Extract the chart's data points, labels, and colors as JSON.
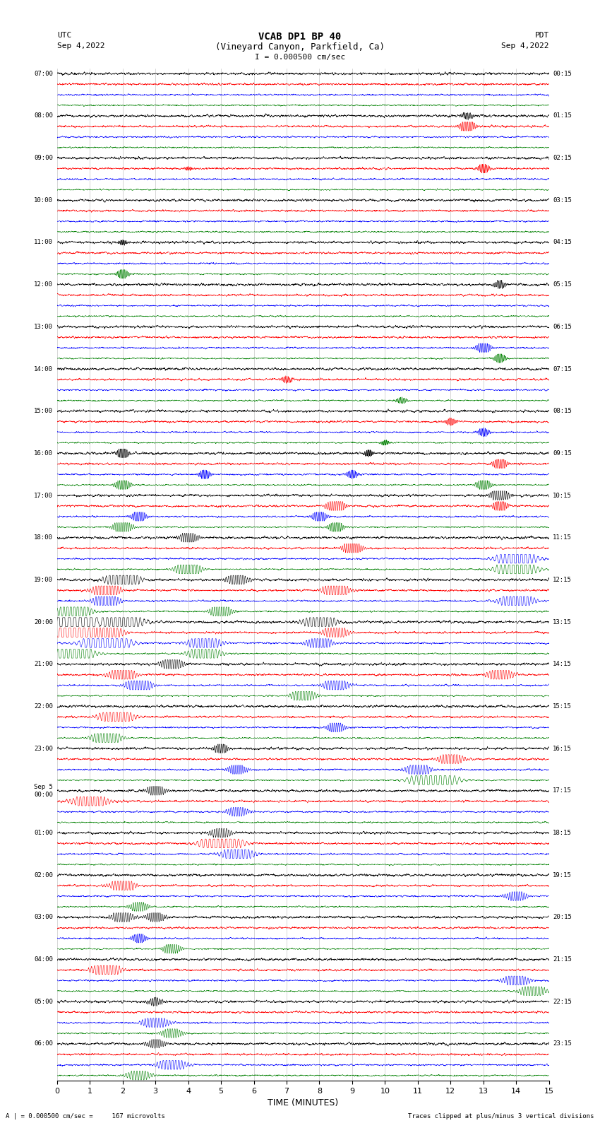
{
  "title_line1": "VCAB DP1 BP 40",
  "title_line2": "(Vineyard Canyon, Parkfield, Ca)",
  "scale_text": "I = 0.000500 cm/sec",
  "bottom_xlabel": "TIME (MINUTES)",
  "bottom_note": "A | = 0.000500 cm/sec =     167 microvolts",
  "bottom_note2": "Traces clipped at plus/minus 3 vertical divisions",
  "utc_times": [
    "07:00",
    "08:00",
    "09:00",
    "10:00",
    "11:00",
    "12:00",
    "13:00",
    "14:00",
    "15:00",
    "16:00",
    "17:00",
    "18:00",
    "19:00",
    "20:00",
    "21:00",
    "22:00",
    "23:00",
    "Sep 5\n00:00",
    "01:00",
    "02:00",
    "03:00",
    "04:00",
    "05:00",
    "06:00"
  ],
  "pdt_times": [
    "00:15",
    "01:15",
    "02:15",
    "03:15",
    "04:15",
    "05:15",
    "06:15",
    "07:15",
    "08:15",
    "09:15",
    "10:15",
    "11:15",
    "12:15",
    "13:15",
    "14:15",
    "15:15",
    "16:15",
    "17:15",
    "18:15",
    "19:15",
    "20:15",
    "21:15",
    "22:15",
    "23:15"
  ],
  "n_hours": 24,
  "n_channels": 4,
  "channel_colors": [
    "#000000",
    "#ff0000",
    "#0000ff",
    "#008000"
  ],
  "background_color": "#ffffff",
  "xmin": 0,
  "xmax": 15,
  "xticks": [
    0,
    1,
    2,
    3,
    4,
    5,
    6,
    7,
    8,
    9,
    10,
    11,
    12,
    13,
    14,
    15
  ],
  "seed": 12345
}
